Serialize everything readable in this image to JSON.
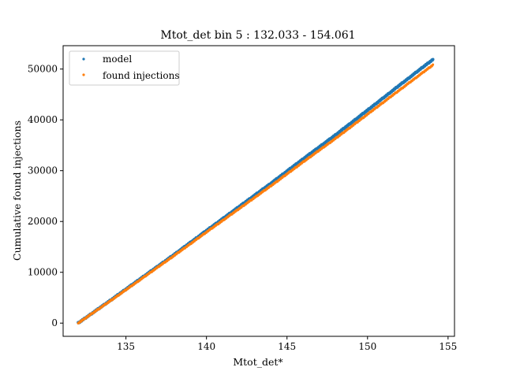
{
  "chart_data": {
    "type": "scatter",
    "title": "Mtot_det bin 5 : 132.033 - 154.061",
    "xlabel": "Mtot_det*",
    "ylabel": "Cumulative found injections",
    "xlim": [
      131.1,
      155.4
    ],
    "ylim": [
      -2600,
      54600
    ],
    "xticks": [
      135,
      140,
      145,
      150,
      155
    ],
    "yticks": [
      0,
      10000,
      20000,
      30000,
      40000,
      50000
    ],
    "x_range": [
      132.033,
      154.061
    ],
    "series": [
      {
        "name": "model",
        "color": "#1f77b4",
        "x": [
          132.033,
          134.0,
          136.0,
          138.0,
          140.0,
          142.0,
          144.0,
          146.0,
          148.0,
          150.0,
          152.0,
          154.061
        ],
        "y": [
          0,
          4400,
          8950,
          13500,
          18200,
          22850,
          27500,
          32300,
          37000,
          41900,
          46850,
          51900
        ]
      },
      {
        "name": "found injections",
        "color": "#ff7f0e",
        "x": [
          132.033,
          134.0,
          136.0,
          138.0,
          140.0,
          142.0,
          144.0,
          146.0,
          148.0,
          150.0,
          152.0,
          154.061
        ],
        "y": [
          0,
          4300,
          8800,
          13300,
          17900,
          22450,
          27000,
          31700,
          36300,
          41100,
          45900,
          50800
        ]
      }
    ],
    "legend": {
      "location": "upper-left"
    },
    "grid": false
  }
}
